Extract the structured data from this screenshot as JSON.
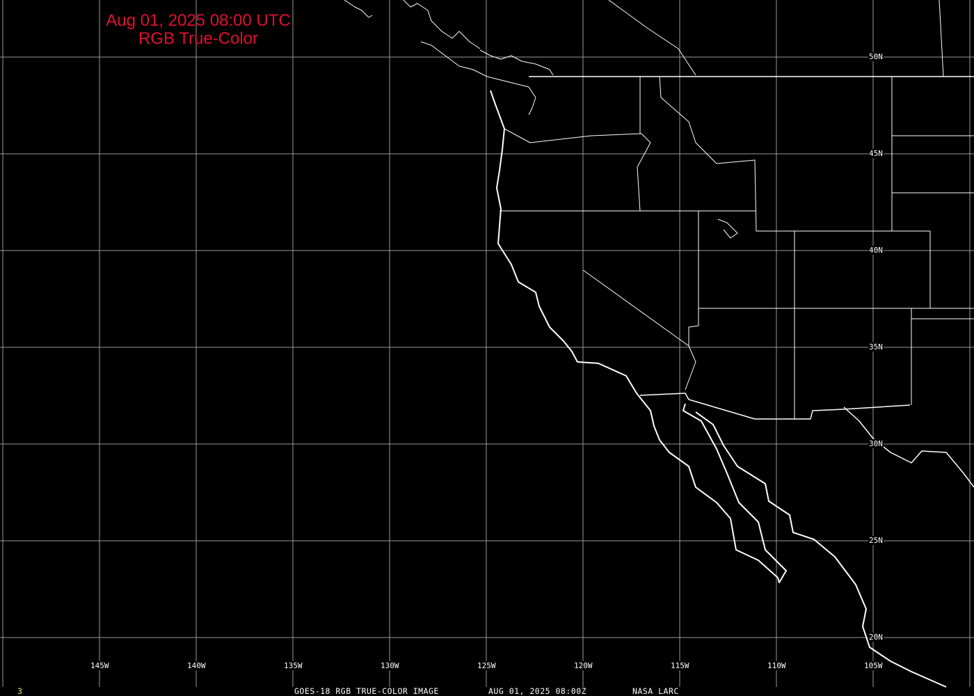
{
  "title": {
    "line1": "Aug 01, 2025 08:00 UTC",
    "line2": "RGB True-Color"
  },
  "longitude_labels": [
    "145W",
    "140W",
    "135W",
    "130W",
    "125W",
    "120W",
    "115W",
    "110W",
    "105W"
  ],
  "latitude_labels": [
    "50N",
    "45N",
    "40N",
    "35N",
    "30N",
    "25N",
    "20N"
  ],
  "footer": {
    "frame": "3",
    "caption": "GOES-18 RGB TRUE-COLOR IMAGE",
    "datetime": "AUG 01, 2025 08:00Z",
    "source": "NASA LARC"
  },
  "colors": {
    "title": "#e0102e",
    "grid": "#9a9a9a",
    "coast": "#ffffff",
    "frame_number": "#e8e070"
  }
}
